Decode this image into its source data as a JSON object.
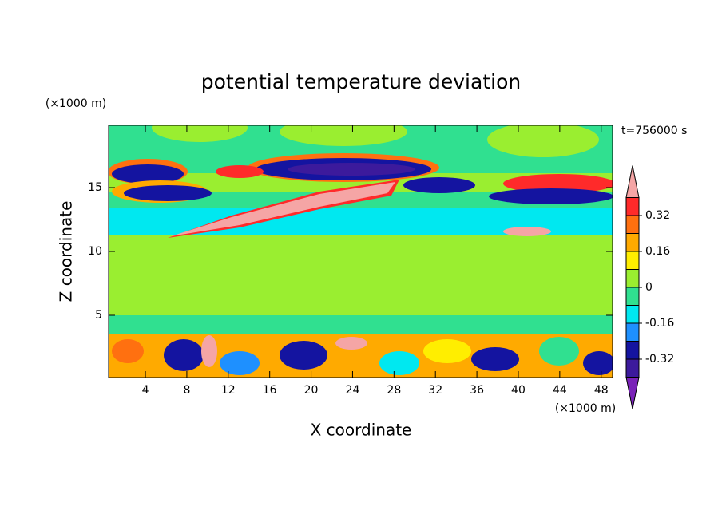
{
  "chart_data": {
    "type": "contour",
    "title": "potential temperature deviation",
    "xlabel": "X coordinate",
    "ylabel": "Z coordinate",
    "xunit": "(×1000 m)",
    "yunit": "(×1000 m)",
    "annotation": "t=756000 s",
    "xlim": [
      0.45,
      49.1
    ],
    "ylim": [
      0.125,
      19.875
    ],
    "xticks": [
      4,
      8,
      12,
      16,
      20,
      24,
      28,
      32,
      36,
      40,
      44,
      48
    ],
    "yticks": [
      5,
      10,
      15
    ],
    "clim": [
      -0.4,
      0.4
    ],
    "cticks": [
      -0.32,
      -0.16,
      0,
      0.16,
      0.32
    ],
    "colors": [
      "#7a22b8",
      "#3c1a9c",
      "#1414a0",
      "#1e90ff",
      "#00e8f0",
      "#30e090",
      "#9aee30",
      "#ffee00",
      "#ffaa00",
      "#ff7010",
      "#ff2a2a",
      "#f5a5a5"
    ]
  }
}
